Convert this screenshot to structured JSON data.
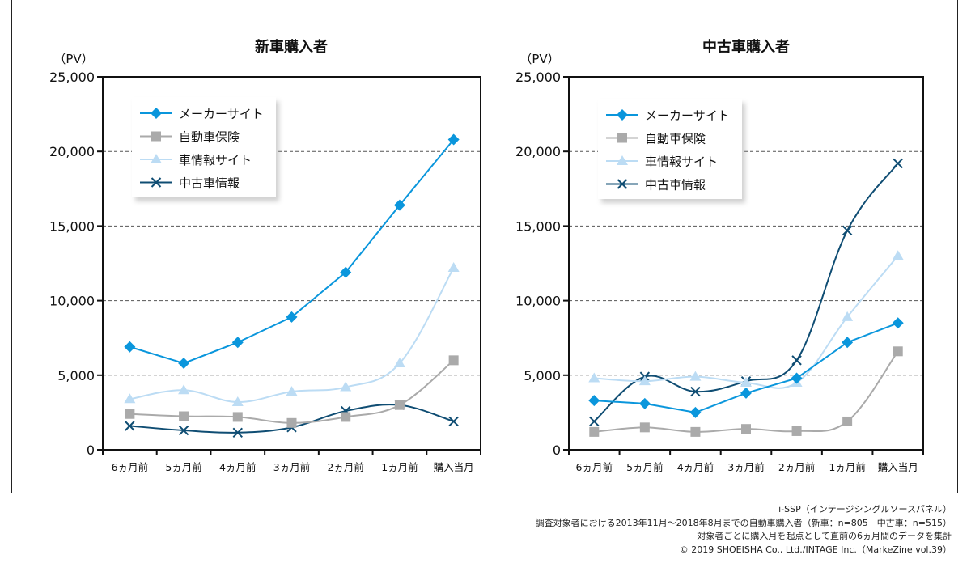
{
  "chart_data": [
    {
      "type": "line",
      "title": "新車購入者",
      "ylabel": "（PV）",
      "xlabel": "",
      "ylim": [
        0,
        25000
      ],
      "yticks": [
        0,
        5000,
        10000,
        15000,
        20000,
        25000
      ],
      "ytick_labels": [
        "0",
        "5,000",
        "10,000",
        "15,000",
        "20,000",
        "25,000"
      ],
      "grid": "horizontal-dashed",
      "legend_position": "top-left",
      "categories": [
        "6ヵ月前",
        "5ヵ月前",
        "4ヵ月前",
        "3ヵ月前",
        "2ヵ月前",
        "1ヵ月前",
        "購入当月"
      ],
      "series": [
        {
          "name": "メーカーサイト",
          "marker": "diamond",
          "color": "#0a96dc",
          "smooth": false,
          "values": [
            6900,
            5800,
            7200,
            8900,
            11900,
            16400,
            20800
          ]
        },
        {
          "name": "自動車保険",
          "marker": "square",
          "color": "#aaaaaa",
          "smooth": true,
          "values": [
            2400,
            2250,
            2200,
            1800,
            2200,
            3000,
            6000
          ]
        },
        {
          "name": "車情報サイト",
          "marker": "triangle",
          "color": "#bcdcf4",
          "smooth": true,
          "values": [
            3400,
            4000,
            3200,
            3900,
            4200,
            5800,
            12200
          ]
        },
        {
          "name": "中古車情報",
          "marker": "x",
          "color": "#0f4d73",
          "smooth": true,
          "values": [
            1600,
            1300,
            1150,
            1500,
            2600,
            3000,
            1900
          ]
        }
      ]
    },
    {
      "type": "line",
      "title": "中古車購入者",
      "ylabel": "（PV）",
      "xlabel": "",
      "ylim": [
        0,
        25000
      ],
      "yticks": [
        0,
        5000,
        10000,
        15000,
        20000,
        25000
      ],
      "ytick_labels": [
        "0",
        "5,000",
        "10,000",
        "15,000",
        "20,000",
        "25,000"
      ],
      "grid": "horizontal-dashed",
      "legend_position": "top-left",
      "categories": [
        "6ヵ月前",
        "5ヵ月前",
        "4ヵ月前",
        "3ヵ月前",
        "2ヵ月前",
        "1ヵ月前",
        "購入当月"
      ],
      "series": [
        {
          "name": "メーカーサイト",
          "marker": "diamond",
          "color": "#0a96dc",
          "smooth": false,
          "values": [
            3300,
            3100,
            2500,
            3800,
            4800,
            7200,
            8500
          ]
        },
        {
          "name": "自動車保険",
          "marker": "square",
          "color": "#aaaaaa",
          "smooth": true,
          "values": [
            1200,
            1500,
            1200,
            1400,
            1250,
            1900,
            6600
          ]
        },
        {
          "name": "車情報サイト",
          "marker": "triangle",
          "color": "#bcdcf4",
          "smooth": true,
          "values": [
            4800,
            4600,
            4900,
            4500,
            4500,
            8900,
            13000
          ]
        },
        {
          "name": "中古車情報",
          "marker": "x",
          "color": "#0f4d73",
          "smooth": true,
          "values": [
            1900,
            4900,
            3900,
            4600,
            6000,
            14700,
            19200
          ]
        }
      ]
    }
  ],
  "notes": [
    "i-SSP（インテージシングルソースパネル）",
    "調査対象者における2013年11月～2018年8月までの自動車購入者（新車：n=805　中古車：n=515）",
    "対象者ごとに購入月を起点として直前の6ヵ月間のデータを集計",
    "© 2019 SHOEISHA Co., Ltd./INTAGE Inc.（MarkeZine vol.39）"
  ]
}
